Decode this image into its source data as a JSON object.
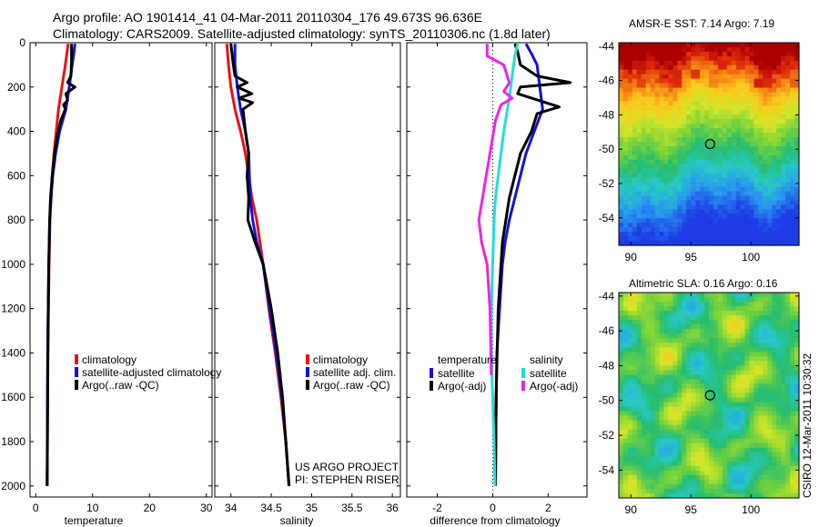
{
  "header": {
    "line1": "Argo profile: AO 1901414_41 04-Mar-2011 20110304_176 49.673S 96.636E",
    "line2": "Climatology: CARS2009. Satellite-adjusted climatology: synTS_20110306.nc (1.8d later)"
  },
  "colors": {
    "climatology": "#ee1111",
    "satellite": "#1111dd",
    "argo": "#000000",
    "sal_satellite": "#22dddd",
    "sal_argo": "#ee22ee"
  },
  "chart_data": [
    {
      "type": "line",
      "name": "temperature-panel",
      "xlabel": "temperature",
      "ylabel": "",
      "xlim": [
        -1,
        31
      ],
      "ylim": [
        2050,
        0
      ],
      "xticks": [
        0,
        10,
        20,
        30
      ],
      "yticks": [
        0,
        200,
        400,
        600,
        800,
        1000,
        1200,
        1400,
        1600,
        1800,
        2000
      ],
      "legend": [
        "climatology",
        "satellite-adjusted climatology",
        "Argo(..raw -QC)"
      ],
      "series": [
        {
          "name": "climatology",
          "color": "#ee1111",
          "x": [
            5.7,
            5.2,
            4.6,
            4.0,
            3.6,
            3.2,
            2.9,
            2.7,
            2.5,
            2.35,
            2.25,
            2.15,
            2.1,
            2.05,
            2.0
          ],
          "y": [
            5,
            100,
            200,
            300,
            400,
            500,
            600,
            700,
            800,
            1000,
            1200,
            1400,
            1600,
            1800,
            2000
          ]
        },
        {
          "name": "satellite-adjusted climatology",
          "color": "#1111dd",
          "x": [
            6.9,
            6.7,
            6.4,
            5.9,
            5.3,
            4.2,
            3.5,
            3.0,
            2.7,
            2.45,
            2.3,
            2.2,
            2.1,
            2.05,
            2.0
          ],
          "y": [
            5,
            50,
            100,
            200,
            300,
            400,
            500,
            600,
            700,
            800,
            1000,
            1200,
            1400,
            1700,
            2000
          ]
        },
        {
          "name": "Argo(..raw -QC)",
          "color": "#000000",
          "x": [
            6.3,
            6.3,
            6.2,
            5.6,
            6.9,
            5.3,
            5.6,
            4.9,
            5.2,
            4.4,
            3.8,
            3.3,
            2.9,
            2.6,
            2.45,
            2.3,
            2.2,
            2.1,
            2.05,
            2.0
          ],
          "y": [
            5,
            80,
            150,
            180,
            200,
            230,
            260,
            280,
            300,
            350,
            420,
            500,
            600,
            700,
            800,
            1000,
            1200,
            1500,
            1800,
            2000
          ]
        }
      ]
    },
    {
      "type": "line",
      "name": "salinity-panel",
      "xlabel": "salinity",
      "ylabel": "",
      "xlim": [
        33.8,
        36.1
      ],
      "ylim": [
        2050,
        0
      ],
      "xticks": [
        34,
        34.5,
        35,
        35.5,
        36
      ],
      "xtick_labels": [
        "34",
        "34.5",
        "35",
        "35.5",
        "36"
      ],
      "legend": [
        "climatology",
        "satellite adj. clim.",
        "Argo(..raw -QC)"
      ],
      "series": [
        {
          "name": "climatology",
          "color": "#ee1111",
          "x": [
            33.95,
            33.97,
            34.0,
            34.05,
            34.12,
            34.18,
            34.22,
            34.26,
            34.32,
            34.4,
            34.47,
            34.55,
            34.62,
            34.68,
            34.72
          ],
          "y": [
            5,
            100,
            200,
            300,
            400,
            500,
            600,
            700,
            800,
            1000,
            1200,
            1400,
            1600,
            1800,
            2000
          ]
        },
        {
          "name": "satellite adj. clim.",
          "color": "#1111dd",
          "x": [
            34.05,
            34.05,
            34.08,
            34.12,
            34.18,
            34.22,
            34.23,
            34.24,
            34.27,
            34.32,
            34.4,
            34.48,
            34.56,
            34.63,
            34.68,
            34.7,
            34.72
          ],
          "y": [
            5,
            100,
            200,
            300,
            400,
            500,
            600,
            700,
            800,
            900,
            1000,
            1200,
            1400,
            1600,
            1800,
            1900,
            2000
          ]
        },
        {
          "name": "Argo(..raw -QC)",
          "color": "#000000",
          "x": [
            34.0,
            34.03,
            34.05,
            34.2,
            34.08,
            34.26,
            34.1,
            34.27,
            34.15,
            34.18,
            34.22,
            34.2,
            34.22,
            34.21,
            34.3,
            34.4,
            34.5,
            34.58,
            34.64,
            34.68,
            34.72
          ],
          "y": [
            5,
            100,
            150,
            180,
            200,
            230,
            250,
            270,
            300,
            400,
            500,
            600,
            700,
            800,
            900,
            1000,
            1200,
            1400,
            1600,
            1800,
            2000
          ]
        }
      ],
      "annotations": [
        "US ARGO PROJECT",
        "PI: STEPHEN RISER"
      ]
    },
    {
      "type": "line",
      "name": "difference-panel",
      "xlabel": "difference from climatology",
      "ylabel": "",
      "xlim": [
        -3.1,
        3.4
      ],
      "ylim": [
        2050,
        0
      ],
      "xticks": [
        -2,
        0,
        2
      ],
      "legend_groups": [
        {
          "title": "temperature",
          "entries": [
            "satellite",
            "Argo(-adj)"
          ]
        },
        {
          "title": "salinity",
          "entries": [
            "satellite",
            "Argo(-adj)"
          ]
        }
      ],
      "series": [
        {
          "name": "temperature satellite",
          "color": "#1111dd",
          "x": [
            1.2,
            1.4,
            1.6,
            1.7,
            1.8,
            1.5,
            1.2,
            1.0,
            0.8,
            0.6,
            0.45,
            0.35,
            0.25,
            0.15,
            0.12,
            0.1
          ],
          "y": [
            5,
            50,
            100,
            200,
            300,
            400,
            500,
            600,
            700,
            800,
            900,
            1000,
            1200,
            1400,
            1700,
            2000
          ]
        },
        {
          "name": "temperature Argo(-adj)",
          "color": "#000000",
          "x": [
            0.8,
            0.9,
            1.0,
            1.6,
            2.8,
            1.0,
            0.9,
            2.4,
            1.6,
            1.4,
            1.0,
            0.6,
            0.35,
            0.2,
            0.12,
            0.1
          ],
          "y": [
            5,
            40,
            100,
            150,
            180,
            200,
            230,
            290,
            320,
            400,
            500,
            700,
            900,
            1200,
            1600,
            2000
          ]
        },
        {
          "name": "salinity satellite",
          "color": "#22dddd",
          "x": [
            0.9,
            0.8,
            0.7,
            0.6,
            0.4,
            0.3,
            0.2,
            0.1,
            0.05,
            0.0,
            -0.05,
            -0.05,
            0.0,
            0.05,
            0.08
          ],
          "y": [
            5,
            60,
            150,
            250,
            400,
            500,
            600,
            700,
            800,
            1000,
            1200,
            1400,
            1600,
            1800,
            2000
          ]
        },
        {
          "name": "salinity Argo(-adj)",
          "color": "#ee22ee",
          "x": [
            -0.2,
            -0.2,
            0.4,
            0.6,
            0.4,
            0.7,
            0.3,
            0.1,
            -0.1,
            -0.3,
            -0.5,
            -0.4,
            -0.2,
            -0.1,
            -0.05
          ],
          "y": [
            5,
            60,
            100,
            180,
            220,
            250,
            280,
            350,
            500,
            650,
            800,
            900,
            1000,
            1200,
            1500
          ]
        }
      ]
    },
    {
      "type": "heatmap",
      "name": "sst-map",
      "title": "AMSR-E SST: 7.14 Argo: 7.19",
      "xlim": [
        89,
        104
      ],
      "ylim": [
        -55.6,
        -43.8
      ],
      "xticks": [
        90,
        95,
        100
      ],
      "yticks": [
        -44,
        -46,
        -48,
        -50,
        -52,
        -54
      ],
      "marker": {
        "lon": 96.6,
        "lat": -49.7
      }
    },
    {
      "type": "heatmap",
      "name": "sla-map",
      "title": "Altimetric SLA: 0.16 Argo: 0.16",
      "xlim": [
        89,
        104
      ],
      "ylim": [
        -55.6,
        -43.8
      ],
      "xticks": [
        90,
        95,
        100
      ],
      "yticks": [
        -44,
        -46,
        -48,
        -50,
        -52,
        -54
      ],
      "marker": {
        "lon": 96.6,
        "lat": -49.7
      }
    }
  ],
  "footer": {
    "stamp": "CSIRO 12-Mar-2011 10:30:32"
  }
}
